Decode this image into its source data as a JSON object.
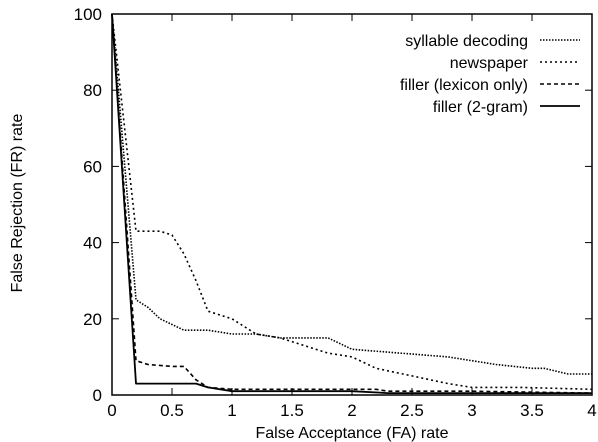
{
  "chart_data": {
    "type": "line",
    "title": "",
    "xlabel": "False Acceptance (FA) rate",
    "ylabel": "False Rejection (FR) rate",
    "xlim": [
      0,
      4
    ],
    "ylim": [
      0,
      100
    ],
    "xticks": [
      "0",
      "0.5",
      "1",
      "1.5",
      "2",
      "2.5",
      "3",
      "3.5",
      "4"
    ],
    "yticks": [
      "0",
      "20",
      "40",
      "60",
      "80",
      "100"
    ],
    "grid": false,
    "legend_position": "top-right",
    "series": [
      {
        "name": "syllable decoding",
        "dash": "dotted-dense",
        "points": [
          [
            0,
            100
          ],
          [
            0.2,
            25
          ],
          [
            0.3,
            23
          ],
          [
            0.4,
            20
          ],
          [
            0.6,
            17
          ],
          [
            0.8,
            17
          ],
          [
            1.0,
            16
          ],
          [
            1.2,
            16
          ],
          [
            1.4,
            15
          ],
          [
            1.6,
            15
          ],
          [
            1.8,
            15
          ],
          [
            2.0,
            12
          ],
          [
            2.4,
            11
          ],
          [
            2.8,
            10
          ],
          [
            3.2,
            8
          ],
          [
            3.5,
            7
          ],
          [
            3.6,
            7
          ],
          [
            3.8,
            5.5
          ],
          [
            4.0,
            5.5
          ]
        ]
      },
      {
        "name": "newspaper",
        "dash": "dotted",
        "points": [
          [
            0,
            100
          ],
          [
            0.2,
            43
          ],
          [
            0.4,
            43
          ],
          [
            0.5,
            42
          ],
          [
            0.6,
            37
          ],
          [
            0.7,
            30
          ],
          [
            0.8,
            22
          ],
          [
            1.0,
            20
          ],
          [
            1.2,
            16
          ],
          [
            1.4,
            15
          ],
          [
            1.6,
            13
          ],
          [
            1.8,
            11
          ],
          [
            2.0,
            10
          ],
          [
            2.2,
            7
          ],
          [
            2.5,
            5
          ],
          [
            2.8,
            3
          ],
          [
            3.0,
            2
          ],
          [
            3.4,
            2
          ],
          [
            4.0,
            1.5
          ]
        ]
      },
      {
        "name": "filler (lexicon only)",
        "dash": "dashed",
        "points": [
          [
            0,
            100
          ],
          [
            0.2,
            9
          ],
          [
            0.3,
            8
          ],
          [
            0.5,
            7.5
          ],
          [
            0.6,
            7.5
          ],
          [
            0.7,
            4
          ],
          [
            0.8,
            2
          ],
          [
            1.0,
            1.5
          ],
          [
            1.5,
            1.5
          ],
          [
            2.0,
            1.5
          ],
          [
            2.2,
            1.5
          ],
          [
            2.3,
            1
          ],
          [
            3.0,
            1
          ],
          [
            4.0,
            0.5
          ]
        ]
      },
      {
        "name": "filler (2-gram)",
        "dash": "solid",
        "points": [
          [
            0,
            100
          ],
          [
            0.2,
            3
          ],
          [
            0.4,
            3
          ],
          [
            0.7,
            3
          ],
          [
            0.8,
            2
          ],
          [
            1.0,
            1
          ],
          [
            1.5,
            1
          ],
          [
            2.0,
            1
          ],
          [
            2.3,
            0.5
          ],
          [
            3.0,
            0.5
          ],
          [
            4.0,
            0.5
          ]
        ]
      }
    ]
  }
}
